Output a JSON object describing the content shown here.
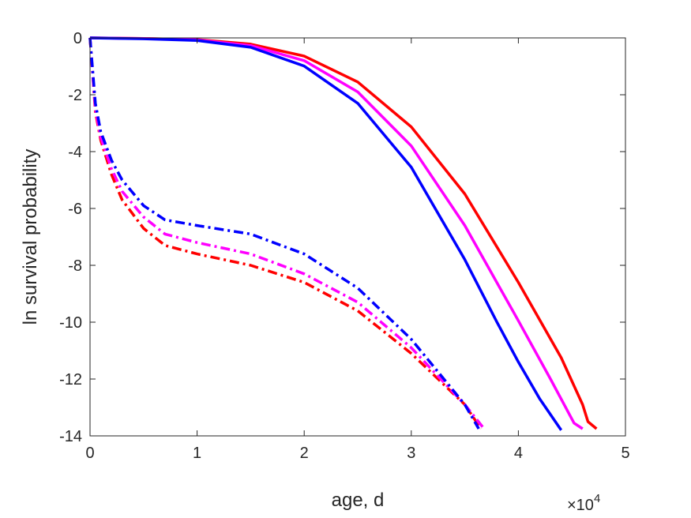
{
  "chart_data": {
    "type": "line",
    "xlabel": "age, d",
    "ylabel": "ln survival probability",
    "xlim": [
      0,
      50000
    ],
    "ylim": [
      -14,
      0
    ],
    "x_ticks": [
      0,
      10000,
      20000,
      30000,
      40000,
      50000
    ],
    "x_tick_labels": [
      "0",
      "1",
      "2",
      "3",
      "4",
      "5"
    ],
    "x_exponent_label": {
      "base": "×10",
      "power": "4"
    },
    "y_ticks": [
      0,
      -2,
      -4,
      -6,
      -8,
      -10,
      -12,
      -14
    ],
    "y_tick_labels": [
      "0",
      "-2",
      "-4",
      "-6",
      "-8",
      "-10",
      "-12",
      "-14"
    ],
    "grid": false,
    "box": true,
    "series": [
      {
        "color": "#ff0000",
        "style": "solid",
        "points": [
          [
            0,
            0
          ],
          [
            5000,
            -0.02
          ],
          [
            10000,
            -0.06
          ],
          [
            15000,
            -0.22
          ],
          [
            20000,
            -0.64
          ],
          [
            25000,
            -1.55
          ],
          [
            30000,
            -3.13
          ],
          [
            35000,
            -5.49
          ],
          [
            40000,
            -8.6
          ],
          [
            44000,
            -11.25
          ],
          [
            46000,
            -12.9
          ],
          [
            46500,
            -13.5
          ],
          [
            47300,
            -13.75
          ]
        ]
      },
      {
        "color": "#ff00ff",
        "style": "solid",
        "points": [
          [
            0,
            0
          ],
          [
            5000,
            -0.02
          ],
          [
            10000,
            -0.07
          ],
          [
            15000,
            -0.27
          ],
          [
            20000,
            -0.8
          ],
          [
            25000,
            -1.9
          ],
          [
            30000,
            -3.8
          ],
          [
            35000,
            -6.6
          ],
          [
            40000,
            -9.95
          ],
          [
            43000,
            -12.0
          ],
          [
            45200,
            -13.55
          ],
          [
            46000,
            -13.75
          ]
        ]
      },
      {
        "color": "#0000ff",
        "style": "solid",
        "points": [
          [
            0,
            0
          ],
          [
            5000,
            -0.03
          ],
          [
            10000,
            -0.09
          ],
          [
            15000,
            -0.33
          ],
          [
            20000,
            -0.99
          ],
          [
            25000,
            -2.3
          ],
          [
            30000,
            -4.55
          ],
          [
            35000,
            -7.8
          ],
          [
            38000,
            -10.0
          ],
          [
            40000,
            -11.4
          ],
          [
            42000,
            -12.7
          ],
          [
            44000,
            -13.8
          ]
        ]
      },
      {
        "color": "#ff0000",
        "style": "dashdot",
        "points": [
          [
            0,
            0
          ],
          [
            500,
            -2.6
          ],
          [
            1000,
            -3.6
          ],
          [
            2000,
            -4.8
          ],
          [
            3000,
            -5.7
          ],
          [
            5000,
            -6.7
          ],
          [
            7000,
            -7.3
          ],
          [
            10000,
            -7.6
          ],
          [
            15000,
            -8.0
          ],
          [
            20000,
            -8.6
          ],
          [
            25000,
            -9.6
          ],
          [
            30000,
            -11.1
          ],
          [
            35000,
            -12.9
          ],
          [
            36500,
            -13.75
          ]
        ]
      },
      {
        "color": "#ff00ff",
        "style": "dashdot",
        "points": [
          [
            0,
            0
          ],
          [
            500,
            -2.5
          ],
          [
            1000,
            -3.5
          ],
          [
            2000,
            -4.6
          ],
          [
            3000,
            -5.4
          ],
          [
            5000,
            -6.3
          ],
          [
            7000,
            -6.9
          ],
          [
            10000,
            -7.2
          ],
          [
            15000,
            -7.6
          ],
          [
            20000,
            -8.3
          ],
          [
            25000,
            -9.3
          ],
          [
            30000,
            -10.9
          ],
          [
            35000,
            -12.9
          ],
          [
            36800,
            -13.75
          ]
        ]
      },
      {
        "color": "#0000ff",
        "style": "dashdot",
        "points": [
          [
            0,
            0
          ],
          [
            500,
            -2.3
          ],
          [
            1000,
            -3.3
          ],
          [
            2000,
            -4.3
          ],
          [
            3000,
            -5.0
          ],
          [
            5000,
            -5.9
          ],
          [
            7000,
            -6.4
          ],
          [
            10000,
            -6.6
          ],
          [
            15000,
            -6.9
          ],
          [
            20000,
            -7.6
          ],
          [
            25000,
            -8.8
          ],
          [
            30000,
            -10.6
          ],
          [
            35000,
            -12.9
          ],
          [
            36300,
            -13.75
          ]
        ]
      }
    ]
  }
}
